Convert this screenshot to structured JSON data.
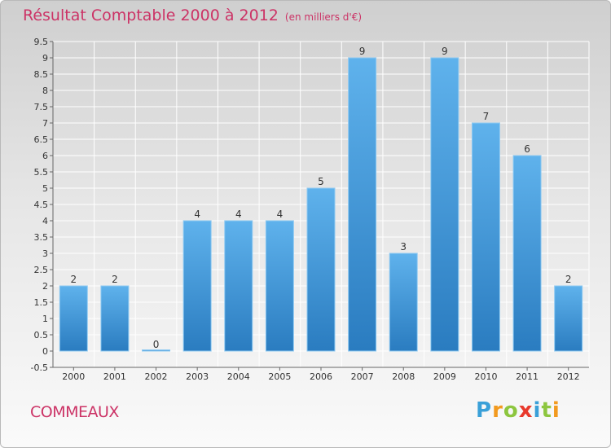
{
  "header": {
    "title": "Résultat Comptable 2000 à 2012",
    "subtitle": "(en milliers d'€)"
  },
  "footer": {
    "commune": "COMMEAUX",
    "logo_letters": [
      "P",
      "r",
      "o",
      "x",
      "i",
      "t",
      "i"
    ],
    "logo_colors": [
      "#3aa0d8",
      "#f29a1f",
      "#8dc63f",
      "#e8392c",
      "#3aa0d8",
      "#8dc63f",
      "#f29a1f"
    ]
  },
  "colors": {
    "bar_top": "#5fb2ec",
    "bar_bottom": "#2a7cc0",
    "title": "#cc3366"
  },
  "chart_data": {
    "type": "bar",
    "title": "Résultat Comptable 2000 à 2012",
    "subtitle": "(en milliers d'€)",
    "categories": [
      "2000",
      "2001",
      "2002",
      "2003",
      "2004",
      "2005",
      "2006",
      "2007",
      "2008",
      "2009",
      "2010",
      "2011",
      "2012"
    ],
    "values": [
      2,
      2,
      0,
      4,
      4,
      4,
      5,
      9,
      3,
      9,
      7,
      6,
      2
    ],
    "data_labels": [
      "2",
      "2",
      "0",
      "4",
      "4",
      "4",
      "5",
      "9",
      "3",
      "9",
      "7",
      "6",
      "2"
    ],
    "ylim": [
      -0.5,
      9.5
    ],
    "yticks": [
      "-0.5",
      "0",
      "0.5",
      "1",
      "1.5",
      "2",
      "2.5",
      "3",
      "3.5",
      "4",
      "4.5",
      "5",
      "5.5",
      "6",
      "6.5",
      "7",
      "7.5",
      "8",
      "8.5",
      "9",
      "9.5"
    ],
    "ytick_values": [
      -0.5,
      0,
      0.5,
      1,
      1.5,
      2,
      2.5,
      3,
      3.5,
      4,
      4.5,
      5,
      5.5,
      6,
      6.5,
      7,
      7.5,
      8,
      8.5,
      9,
      9.5
    ],
    "grid": true,
    "xlabel": "",
    "ylabel": ""
  }
}
